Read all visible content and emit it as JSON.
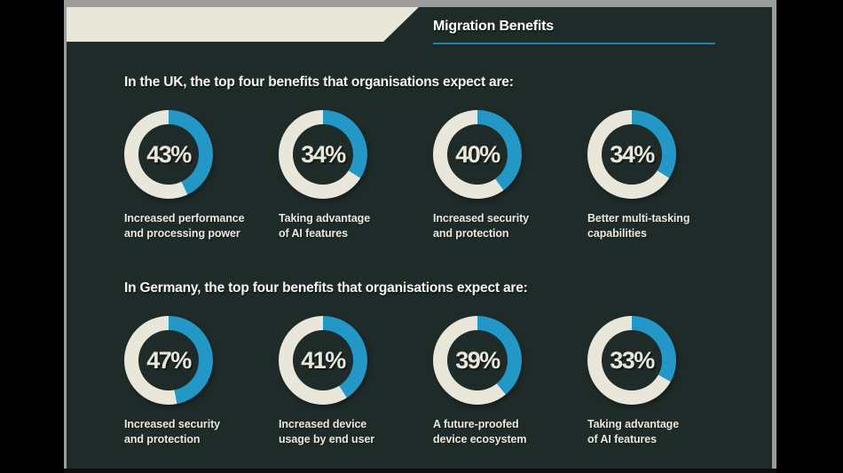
{
  "title": "Migration Benefits",
  "colors": {
    "accent_blue": "#2397c6",
    "cream": "#e9e6da",
    "slide_background": "#1e2b29",
    "title_underline": "#1f84ad",
    "frame_gray": "#9c9c9c"
  },
  "sections": [
    {
      "heading": "In the UK, the top four benefits that organisations expect are:",
      "stats": [
        {
          "value": 43,
          "value_label": "43%",
          "label_lines": [
            "Increased performance",
            "and processing power"
          ]
        },
        {
          "value": 34,
          "value_label": "34%",
          "label_lines": [
            "Taking advantage",
            "of AI features"
          ]
        },
        {
          "value": 40,
          "value_label": "40%",
          "label_lines": [
            "Increased security",
            "and protection"
          ]
        },
        {
          "value": 34,
          "value_label": "34%",
          "label_lines": [
            "Better multi-tasking",
            "capabilities"
          ]
        }
      ]
    },
    {
      "heading": "In Germany, the top four benefits that organisations expect are:",
      "stats": [
        {
          "value": 47,
          "value_label": "47%",
          "label_lines": [
            "Increased security",
            "and protection"
          ]
        },
        {
          "value": 41,
          "value_label": "41%",
          "label_lines": [
            "Increased device",
            "usage by end user"
          ]
        },
        {
          "value": 39,
          "value_label": "39%",
          "label_lines": [
            "A future-proofed",
            "device ecosystem"
          ]
        },
        {
          "value": 33,
          "value_label": "33%",
          "label_lines": [
            "Taking advantage",
            "of AI features"
          ]
        }
      ]
    }
  ],
  "chart_data": [
    {
      "type": "pie",
      "variant": "donut-multiples",
      "title": "In the UK, the top four benefits that organisations expect are:",
      "units": "%",
      "categories": [
        "Increased performance and processing power",
        "Taking advantage of AI features",
        "Increased security and protection",
        "Better multi-tasking capabilities"
      ],
      "values": [
        43,
        34,
        40,
        34
      ],
      "filled_color": "#2397c6",
      "remainder_color": "#e9e6da",
      "legend_position": "below-each-donut"
    },
    {
      "type": "pie",
      "variant": "donut-multiples",
      "title": "In Germany, the top four benefits that organisations expect are:",
      "units": "%",
      "categories": [
        "Increased security and protection",
        "Increased device usage by end user",
        "A future-proofed device ecosystem",
        "Taking advantage of AI features"
      ],
      "values": [
        47,
        41,
        39,
        33
      ],
      "filled_color": "#2397c6",
      "remainder_color": "#e9e6da",
      "legend_position": "below-each-donut"
    }
  ]
}
